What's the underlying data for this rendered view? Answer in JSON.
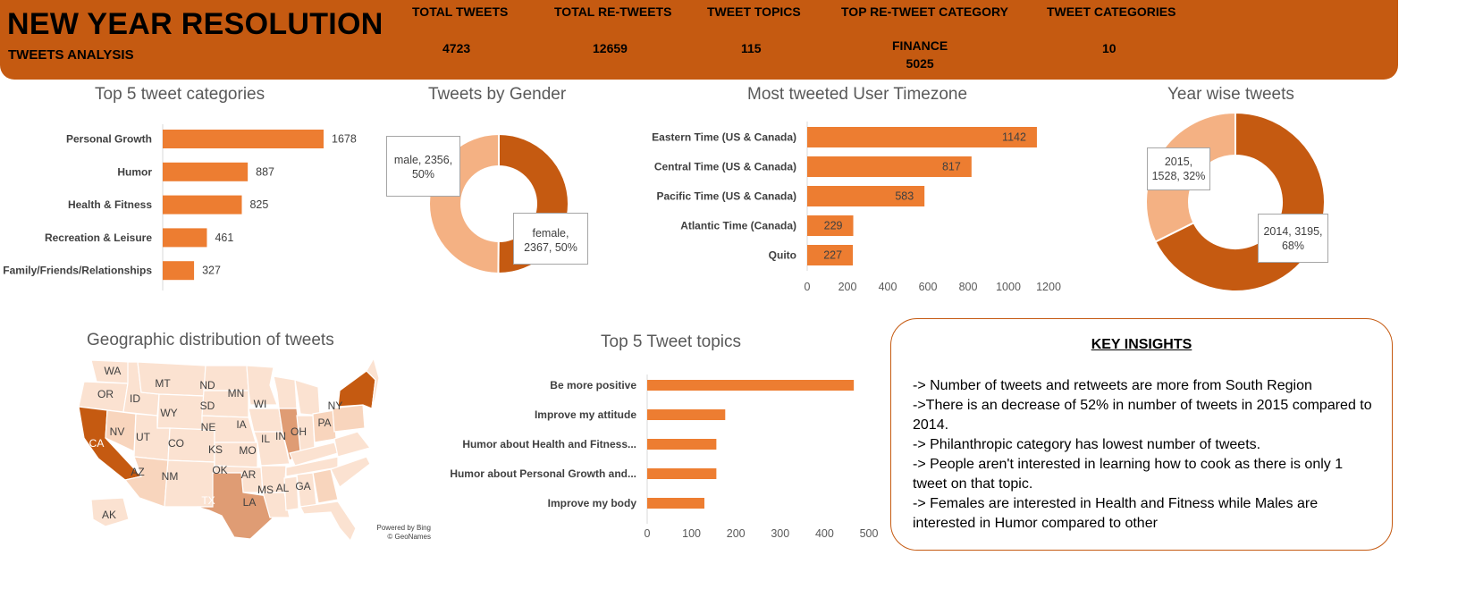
{
  "header": {
    "title": "NEW YEAR RESOLUTION",
    "subtitle": "TWEETS ANALYSIS",
    "kpis": [
      {
        "label": "TOTAL TWEETS",
        "value": "4723"
      },
      {
        "label": "TOTAL RE-TWEETS",
        "value": "12659"
      },
      {
        "label": "TWEET TOPICS",
        "value": "115"
      },
      {
        "label": "TOP RE-TWEET CATEGORY",
        "value": "FINANCE",
        "value2": "5025"
      },
      {
        "label": "TWEET CATEGORIES",
        "value": "10"
      }
    ]
  },
  "colors": {
    "header_bg": "#c55a11",
    "bar": "#ed7d31",
    "donut_dark": "#c55a11",
    "donut_light": "#f4b183"
  },
  "chart_data": [
    {
      "id": "top-categories",
      "type": "bar",
      "orientation": "horizontal",
      "title": "Top 5 tweet categories",
      "categories": [
        "Personal Growth",
        "Humor",
        "Health & Fitness",
        "Recreation & Leisure",
        "Family/Friends/Relationships"
      ],
      "values": [
        1678,
        887,
        825,
        461,
        327
      ],
      "data_labels": true
    },
    {
      "id": "gender",
      "type": "pie",
      "donut": true,
      "title": "Tweets by Gender",
      "slices": [
        {
          "label": "female",
          "value": 2367,
          "percent": "50%",
          "color": "#c55a11"
        },
        {
          "label": "male",
          "value": 2356,
          "percent": "50%",
          "color": "#f4b183"
        }
      ]
    },
    {
      "id": "timezone",
      "type": "bar",
      "orientation": "horizontal",
      "title": "Most tweeted User Timezone",
      "categories": [
        "Eastern Time (US & Canada)",
        "Central Time (US & Canada)",
        "Pacific Time (US & Canada)",
        "Atlantic Time (Canada)",
        "Quito"
      ],
      "values": [
        1142,
        817,
        583,
        229,
        227
      ],
      "xlim": [
        0,
        1200
      ],
      "xticks": [
        "0",
        "200",
        "400",
        "600",
        "800",
        "1000",
        "1200"
      ],
      "data_labels": true
    },
    {
      "id": "year",
      "type": "pie",
      "donut": true,
      "title": "Year wise tweets",
      "slices": [
        {
          "label": "2014",
          "value": 3195,
          "percent": "68%",
          "color": "#c55a11"
        },
        {
          "label": "2015",
          "value": 1528,
          "percent": "32%",
          "color": "#f4b183"
        }
      ]
    },
    {
      "id": "topics",
      "type": "bar",
      "orientation": "horizontal",
      "title": "Top 5 Tweet topics",
      "categories": [
        "Be more positive",
        "Improve my attitude",
        "Humor about Health and Fitness...",
        "Humor about Personal Growth and...",
        "Improve my body"
      ],
      "values": [
        466,
        176,
        156,
        156,
        129
      ],
      "xlim": [
        0,
        500
      ],
      "xticks": [
        "0",
        "100",
        "200",
        "300",
        "400",
        "500"
      ],
      "data_labels": false
    }
  ],
  "map": {
    "title": "Geographic distribution of tweets",
    "credit_line1": "Powered by Bing",
    "credit_line2": "© GeoNames",
    "states": [
      "WA",
      "OR",
      "ID",
      "MT",
      "ND",
      "MN",
      "WI",
      "SD",
      "WY",
      "NE",
      "IA",
      "NV",
      "UT",
      "CO",
      "KS",
      "MO",
      "IL",
      "IN",
      "OH",
      "PA",
      "NY",
      "CA",
      "AZ",
      "NM",
      "OK",
      "AR",
      "TX",
      "MS",
      "AL",
      "GA",
      "LA",
      "AK"
    ]
  },
  "insights": {
    "title": "KEY INSIGHTS",
    "items": [
      "-> Number of tweets and retweets are more from South Region",
      "->There is an decrease of 52% in number of tweets in 2015 compared to 2014.",
      "->  Philanthropic category has lowest number of tweets.",
      "-> People aren't interested in learning how to cook as there is only 1 tweet on that topic.",
      "->  Females are interested in Health and Fitness while Males are interested in Humor compared to other"
    ]
  }
}
